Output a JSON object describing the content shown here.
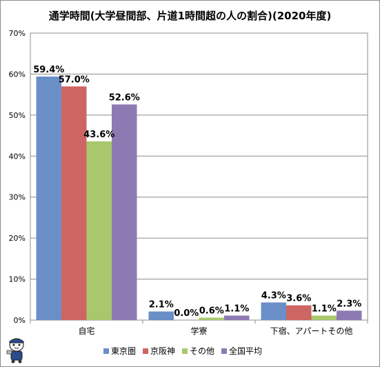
{
  "chart_data": {
    "type": "bar",
    "title": "通学時間(大学昼間部、片道1時間超の人の割合)(2020年度)",
    "categories": [
      "自宅",
      "学寮",
      "下宿、アパートその他"
    ],
    "series": [
      {
        "name": "東京圏",
        "color": "#6a8fc7",
        "values": [
          59.4,
          2.1,
          4.3
        ]
      },
      {
        "name": "京阪神",
        "color": "#cd6563",
        "values": [
          57.0,
          0.0,
          3.6
        ]
      },
      {
        "name": "その他",
        "color": "#a9c76c",
        "values": [
          43.6,
          0.6,
          1.1
        ]
      },
      {
        "name": "全国平均",
        "color": "#8e7ab3",
        "values": [
          52.6,
          1.1,
          2.3
        ]
      }
    ],
    "ylim": [
      0,
      70
    ],
    "yticks": [
      "0%",
      "10%",
      "20%",
      "30%",
      "40%",
      "50%",
      "60%",
      "70%"
    ],
    "value_labels": [
      [
        "59.4%",
        "2.1%",
        "4.3%"
      ],
      [
        "57.0%",
        "0.0%",
        "3.6%"
      ],
      [
        "43.6%",
        "0.6%",
        "1.1%"
      ],
      [
        "52.6%",
        "1.1%",
        "2.3%"
      ]
    ],
    "grid": true,
    "legend_position": "bottom"
  }
}
